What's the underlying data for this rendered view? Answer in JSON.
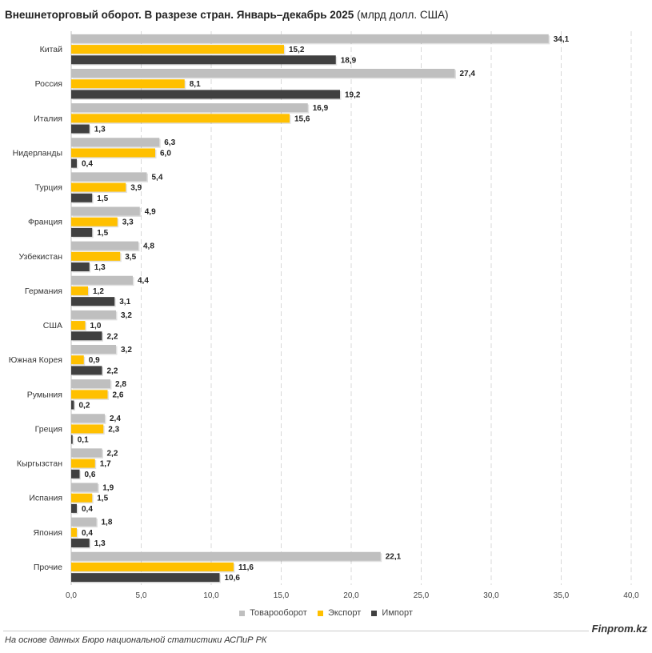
{
  "title": {
    "bold": "Внешнеторговый оборот. В разрезе стран. Январь–декабрь 2025",
    "unit": "(млрд долл. США)"
  },
  "colors": {
    "turnover": "#bfbfbf",
    "export": "#ffc000",
    "import": "#404040",
    "grid": "#d9d9d9",
    "text": "#222222"
  },
  "chart_data": {
    "type": "bar",
    "orientation": "horizontal",
    "title": "Внешнеторговый оборот. В разрезе стран. Январь–декабрь 2025 (млрд долл. США)",
    "categories": [
      "Китай",
      "Россия",
      "Италия",
      "Нидерланды",
      "Турция",
      "Франция",
      "Узбекистан",
      "Германия",
      "США",
      "Южная Корея",
      "Румыния",
      "Греция",
      "Кыргызстан",
      "Испания",
      "Япония",
      "Прочие"
    ],
    "series": [
      {
        "name": "Товарооборот",
        "key": "turnover",
        "values": [
          34.1,
          27.4,
          16.9,
          6.3,
          5.4,
          4.9,
          4.8,
          4.4,
          3.2,
          3.2,
          2.8,
          2.4,
          2.2,
          1.9,
          1.8,
          22.1
        ]
      },
      {
        "name": "Экспорт",
        "key": "export",
        "values": [
          15.2,
          8.1,
          15.6,
          6.0,
          3.9,
          3.3,
          3.5,
          1.2,
          1.0,
          0.9,
          2.6,
          2.3,
          1.7,
          1.5,
          0.4,
          11.6
        ]
      },
      {
        "name": "Импорт",
        "key": "import",
        "values": [
          18.9,
          19.2,
          1.3,
          0.4,
          1.5,
          1.5,
          1.3,
          3.1,
          2.2,
          2.2,
          0.2,
          0.1,
          0.6,
          0.4,
          1.3,
          10.6
        ]
      }
    ],
    "xlim": [
      0,
      40
    ],
    "xticks": [
      "0,0",
      "5,0",
      "10,0",
      "15,0",
      "20,0",
      "25,0",
      "30,0",
      "35,0",
      "40,0"
    ],
    "legend_position": "bottom",
    "grid": "vertical dashed"
  },
  "legend": [
    {
      "label": "Товарооборот",
      "color": "#bfbfbf"
    },
    {
      "label": "Экспорт",
      "color": "#ffc000"
    },
    {
      "label": "Импорт",
      "color": "#404040"
    }
  ],
  "footer": {
    "source": "На основе данных Бюро национальной статистики АСПиР РК",
    "brand": "Finprom.kz"
  }
}
